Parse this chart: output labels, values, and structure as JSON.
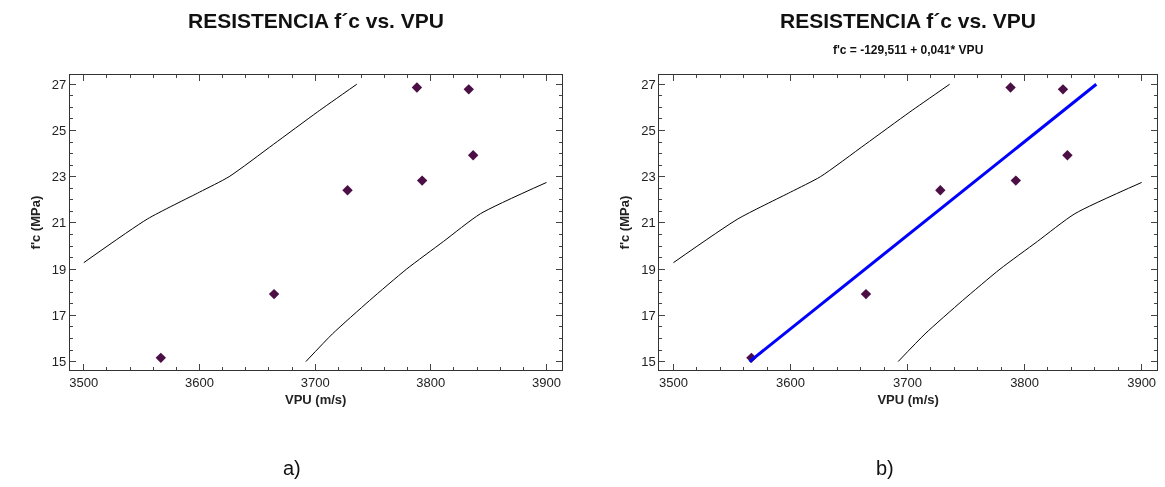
{
  "chart_data": [
    {
      "type": "scatter",
      "title": "RESISTENCIA f´c vs. VPU",
      "xlabel": "VPU (m/s)",
      "ylabel": "f'c (MPa)",
      "xlim": [
        3488,
        3913
      ],
      "ylim": [
        14.63,
        27.4
      ],
      "xticks": [
        3500,
        3600,
        3700,
        3800,
        3900
      ],
      "yticks": [
        15,
        17,
        19,
        21,
        23,
        25,
        27
      ],
      "annotations": [
        "a)"
      ],
      "series": [
        {
          "marker": "diamond",
          "color": "#4b0f46",
          "x": [
            3566.6,
            3664.5,
            3728,
            3788,
            3792.5,
            3832.8,
            3836.6
          ],
          "values": [
            15.16,
            17.92,
            22.41,
            26.86,
            22.83,
            26.78,
            23.93
          ]
        },
        {
          "type": "line",
          "marker": "none",
          "color": "#000000",
          "x": [
            3500,
            3555,
            3600,
            3625.6,
            3664,
            3702,
            3736
          ],
          "values": [
            19.28,
            21.17,
            22.33,
            23.0,
            24.4,
            25.8,
            27.0
          ]
        },
        {
          "type": "line",
          "marker": "none",
          "color": "#000000",
          "x": [
            3692,
            3715,
            3747,
            3779,
            3811,
            3843,
            3900
          ],
          "values": [
            15.0,
            16.2,
            17.64,
            19.0,
            20.2,
            21.4,
            22.75
          ]
        }
      ]
    },
    {
      "type": "scatter",
      "title": "RESISTENCIA f´c vs. VPU",
      "subtitle": "f'c = -129,511 + 0,041* VPU",
      "xlabel": "VPU (m/s)",
      "ylabel": "f'c (MPa)",
      "xlim": [
        3488,
        3913
      ],
      "ylim": [
        14.63,
        27.4
      ],
      "xticks": [
        3500,
        3600,
        3700,
        3800,
        3900
      ],
      "yticks": [
        15,
        17,
        19,
        21,
        23,
        25,
        27
      ],
      "annotations": [
        "b)"
      ],
      "series": [
        {
          "marker": "diamond",
          "color": "#4b0f46",
          "x": [
            3566.6,
            3664.5,
            3728,
            3788,
            3792.5,
            3832.8,
            3836.6
          ],
          "values": [
            15.16,
            17.92,
            22.41,
            26.86,
            22.83,
            26.78,
            23.93
          ]
        },
        {
          "type": "line",
          "marker": "none",
          "color": "#000000",
          "x": [
            3500,
            3555,
            3600,
            3625.6,
            3664,
            3702,
            3736
          ],
          "values": [
            19.28,
            21.17,
            22.33,
            23.0,
            24.4,
            25.8,
            27.0
          ]
        },
        {
          "type": "line",
          "marker": "none",
          "color": "#000000",
          "x": [
            3692,
            3715,
            3747,
            3779,
            3811,
            3843,
            3900
          ],
          "values": [
            15.0,
            16.2,
            17.64,
            19.0,
            20.2,
            21.4,
            22.75
          ]
        },
        {
          "type": "line",
          "marker": "none",
          "color": "#0000ff",
          "x": [
            3565,
            3861.3
          ],
          "values": [
            15.0,
            27.0
          ]
        }
      ]
    }
  ]
}
